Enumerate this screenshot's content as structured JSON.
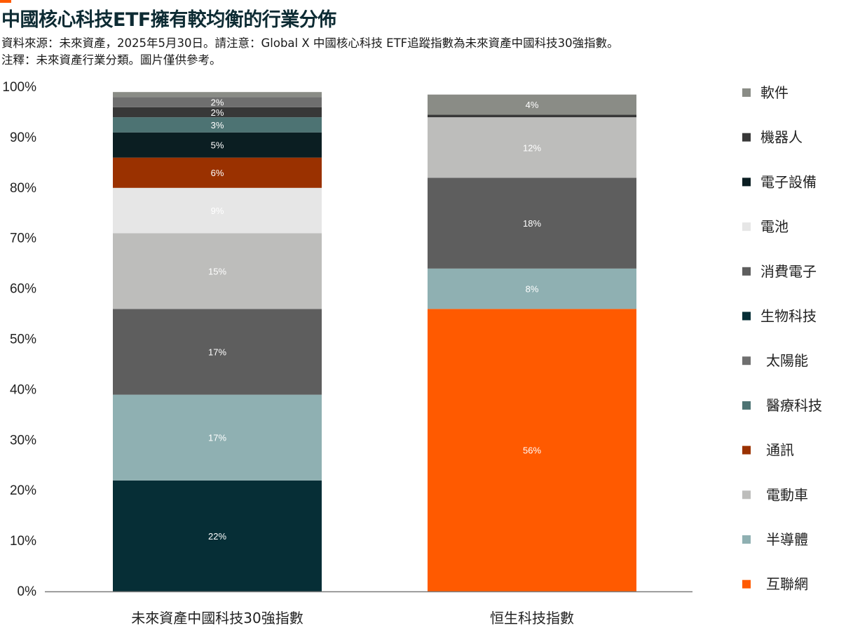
{
  "title": "中國核心科技ETF擁有較均衡的行業分佈",
  "subtitle_line1": "資料來源：未來資產，2025年5月30日。請注意：Global X 中國核心科技 ETF追蹤指數為未來資產中國科技30強指數。",
  "subtitle_line2": "注釋：未來資產行業分類。圖片僅供參考。",
  "colors": {
    "互聯網": "#ff5a00",
    "半導體": "#8fb0b2",
    "電動車": "#bdbdbb",
    "通訊": "#9a3100",
    "醫療科技": "#4d7373",
    "太陽能": "#6f6f6f",
    "生物科技": "#062e36",
    "消費電子": "#5e5e5e",
    "電池": "#e6e6e6",
    "電子設備": "#0b1e22",
    "機器人": "#383838",
    "軟件": "#8a8c86"
  },
  "chart_data": {
    "type": "bar",
    "stacked": true,
    "title": "",
    "xlabel": "",
    "ylabel": "",
    "ylim": [
      0,
      100
    ],
    "yticks": [
      "0%",
      "10%",
      "20%",
      "30%",
      "40%",
      "50%",
      "60%",
      "70%",
      "80%",
      "90%",
      "100%"
    ],
    "categories": [
      "未來資產中國科技30強指數",
      "恒生科技指數"
    ],
    "legend": [
      "軟件",
      "機器人",
      "電子設備",
      "電池",
      "消費電子",
      "生物科技",
      "太陽能",
      "醫療科技",
      "通訊",
      "電動車",
      "半導體",
      "互聯網"
    ],
    "legend_position": "right",
    "bars": [
      {
        "category": "未來資產中國科技30強指數",
        "segments": [
          {
            "name": "生物科技",
            "value": 22,
            "label": "22%"
          },
          {
            "name": "半導體",
            "value": 17,
            "label": "17%"
          },
          {
            "name": "消費電子",
            "value": 17,
            "label": "17%"
          },
          {
            "name": "電動車",
            "value": 15,
            "label": "15%"
          },
          {
            "name": "電池",
            "value": 9,
            "label": "9%"
          },
          {
            "name": "通訊",
            "value": 6,
            "label": "6%"
          },
          {
            "name": "電子設備",
            "value": 5,
            "label": "5%"
          },
          {
            "name": "醫療科技",
            "value": 3,
            "label": "3%"
          },
          {
            "name": "機器人",
            "value": 2,
            "label": "2%"
          },
          {
            "name": "太陽能",
            "value": 2,
            "label": "2%"
          },
          {
            "name": "軟件",
            "value": 1,
            "label": ""
          }
        ]
      },
      {
        "category": "恒生科技指數",
        "segments": [
          {
            "name": "互聯網",
            "value": 56,
            "label": "56%"
          },
          {
            "name": "半導體",
            "value": 8,
            "label": "8%"
          },
          {
            "name": "消費電子",
            "value": 18,
            "label": "18%"
          },
          {
            "name": "電動車",
            "value": 12,
            "label": "12%"
          },
          {
            "name": "機器人",
            "value": 0.5,
            "label": ""
          },
          {
            "name": "軟件",
            "value": 4,
            "label": "4%"
          }
        ]
      }
    ]
  }
}
